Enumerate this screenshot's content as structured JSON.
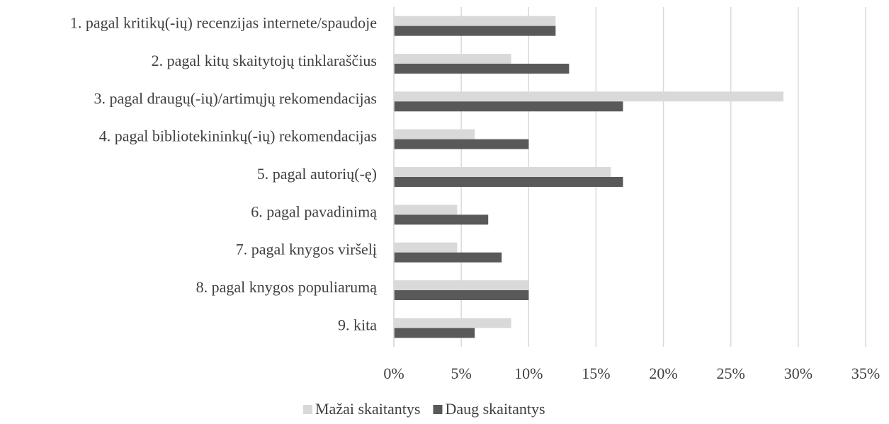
{
  "chart_data": {
    "type": "barh",
    "categories": [
      "1. pagal kritikų(-ių) recenzijas internete/spaudoje",
      "2. pagal kitų skaitytojų tinklaraščius",
      "3. pagal draugų(-ių)/artimųjų rekomendacijas",
      "4. pagal bibliotekininkų(-ių) rekomendacijas",
      "5. pagal autorių(-ę)",
      "6. pagal pavadinimą",
      "7. pagal knygos viršelį",
      "8. pagal knygos populiarumą",
      "9. kita"
    ],
    "series": [
      {
        "name": "Mažai skaitantys",
        "color": "#d9d9d9",
        "values": [
          12.0,
          8.7,
          28.9,
          6.0,
          16.1,
          4.7,
          4.7,
          10.0,
          8.7
        ]
      },
      {
        "name": "Daug skaitantys",
        "color": "#595959",
        "values": [
          12.0,
          13.0,
          17.0,
          10.0,
          17.0,
          7.0,
          8.0,
          10.0,
          6.0
        ]
      }
    ],
    "xlim": [
      0,
      35
    ],
    "xticks": [
      {
        "value": 0,
        "label": "0%"
      },
      {
        "value": 5,
        "label": "5%"
      },
      {
        "value": 10,
        "label": "10%"
      },
      {
        "value": 15,
        "label": "15%"
      },
      {
        "value": 20,
        "label": "20%"
      },
      {
        "value": 25,
        "label": "25%"
      },
      {
        "value": 30,
        "label": "30%"
      },
      {
        "value": 35,
        "label": "35%"
      }
    ],
    "grid": true,
    "legend": "bottom"
  }
}
